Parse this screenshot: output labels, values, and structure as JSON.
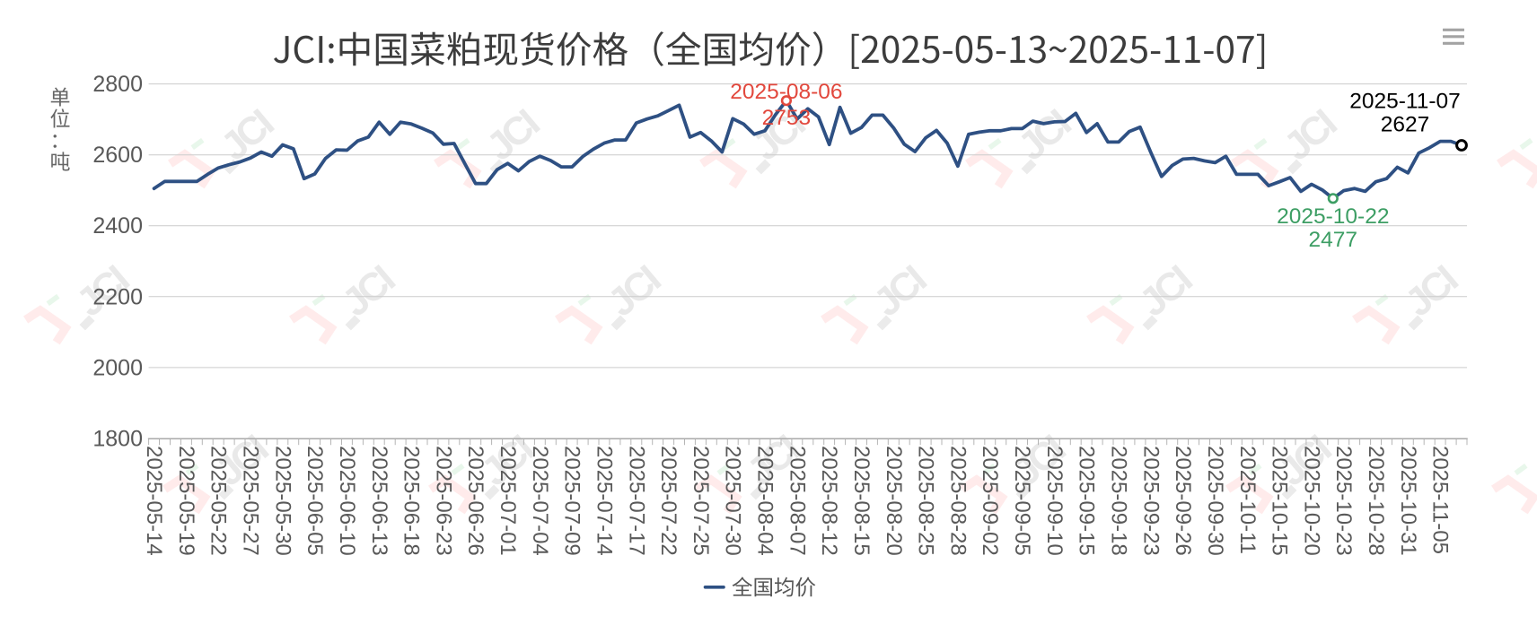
{
  "chart_data": {
    "type": "line",
    "title": "JCI:中国菜粕现货价格（全国均价）[2025-05-13~2025-11-07]",
    "y_axis_name": "单位：吨",
    "series": [
      {
        "name": "全国均价",
        "x": [
          "2025-05-14",
          "2025-05-15",
          "2025-05-16",
          "2025-05-19",
          "2025-05-20",
          "2025-05-21",
          "2025-05-22",
          "2025-05-23",
          "2025-05-26",
          "2025-05-27",
          "2025-05-28",
          "2025-05-29",
          "2025-05-30",
          "2025-06-03",
          "2025-06-04",
          "2025-06-05",
          "2025-06-06",
          "2025-06-09",
          "2025-06-10",
          "2025-06-11",
          "2025-06-12",
          "2025-06-13",
          "2025-06-16",
          "2025-06-17",
          "2025-06-18",
          "2025-06-19",
          "2025-06-20",
          "2025-06-23",
          "2025-06-24",
          "2025-06-25",
          "2025-06-26",
          "2025-06-27",
          "2025-06-30",
          "2025-07-01",
          "2025-07-02",
          "2025-07-03",
          "2025-07-04",
          "2025-07-07",
          "2025-07-08",
          "2025-07-09",
          "2025-07-10",
          "2025-07-11",
          "2025-07-14",
          "2025-07-15",
          "2025-07-16",
          "2025-07-17",
          "2025-07-18",
          "2025-07-21",
          "2025-07-22",
          "2025-07-23",
          "2025-07-24",
          "2025-07-25",
          "2025-07-28",
          "2025-07-29",
          "2025-07-30",
          "2025-07-31",
          "2025-08-01",
          "2025-08-04",
          "2025-08-05",
          "2025-08-06",
          "2025-08-07",
          "2025-08-08",
          "2025-08-11",
          "2025-08-12",
          "2025-08-13",
          "2025-08-14",
          "2025-08-15",
          "2025-08-18",
          "2025-08-19",
          "2025-08-20",
          "2025-08-21",
          "2025-08-22",
          "2025-08-25",
          "2025-08-26",
          "2025-08-27",
          "2025-08-28",
          "2025-08-29",
          "2025-09-01",
          "2025-09-02",
          "2025-09-03",
          "2025-09-04",
          "2025-09-05",
          "2025-09-08",
          "2025-09-09",
          "2025-09-10",
          "2025-09-11",
          "2025-09-12",
          "2025-09-15",
          "2025-09-16",
          "2025-09-17",
          "2025-09-18",
          "2025-09-19",
          "2025-09-22",
          "2025-09-23",
          "2025-09-24",
          "2025-09-25",
          "2025-09-26",
          "2025-09-28",
          "2025-09-29",
          "2025-09-30",
          "2025-10-09",
          "2025-10-10",
          "2025-10-11",
          "2025-10-13",
          "2025-10-14",
          "2025-10-15",
          "2025-10-16",
          "2025-10-17",
          "2025-10-20",
          "2025-10-21",
          "2025-10-22",
          "2025-10-23",
          "2025-10-24",
          "2025-10-27",
          "2025-10-28",
          "2025-10-29",
          "2025-10-30",
          "2025-10-31",
          "2025-11-03",
          "2025-11-04",
          "2025-11-05",
          "2025-11-06",
          "2025-11-07"
        ],
        "values": [
          2505,
          2525,
          2525,
          2525,
          2525,
          2545,
          2563,
          2572,
          2580,
          2591,
          2608,
          2596,
          2628,
          2617,
          2533,
          2546,
          2590,
          2614,
          2613,
          2639,
          2650,
          2692,
          2658,
          2692,
          2687,
          2675,
          2662,
          2630,
          2632,
          2575,
          2519,
          2519,
          2558,
          2576,
          2555,
          2581,
          2596,
          2584,
          2566,
          2566,
          2595,
          2616,
          2633,
          2642,
          2642,
          2690,
          2701,
          2710,
          2725,
          2740,
          2650,
          2663,
          2639,
          2608,
          2702,
          2687,
          2658,
          2668,
          2714,
          2753,
          2701,
          2730,
          2707,
          2629,
          2734,
          2661,
          2677,
          2712,
          2712,
          2676,
          2630,
          2609,
          2648,
          2669,
          2633,
          2568,
          2658,
          2664,
          2668,
          2668,
          2674,
          2674,
          2695,
          2688,
          2693,
          2694,
          2717,
          2663,
          2688,
          2636,
          2636,
          2666,
          2678,
          2607,
          2539,
          2570,
          2588,
          2590,
          2583,
          2578,
          2596,
          2545,
          2545,
          2545,
          2513,
          2524,
          2536,
          2497,
          2517,
          2501,
          2477,
          2499,
          2505,
          2497,
          2524,
          2533,
          2565,
          2549,
          2605,
          2620,
          2638,
          2638,
          2627
        ]
      }
    ],
    "x_tick_labels": [
      "2025-05-14",
      "2025-05-19",
      "2025-05-22",
      "2025-05-27",
      "2025-05-30",
      "2025-06-05",
      "2025-06-10",
      "2025-06-13",
      "2025-06-18",
      "2025-06-23",
      "2025-06-26",
      "2025-07-01",
      "2025-07-04",
      "2025-07-09",
      "2025-07-14",
      "2025-07-17",
      "2025-07-22",
      "2025-07-25",
      "2025-07-30",
      "2025-08-04",
      "2025-08-07",
      "2025-08-12",
      "2025-08-15",
      "2025-08-20",
      "2025-08-25",
      "2025-08-28",
      "2025-09-02",
      "2025-09-05",
      "2025-09-10",
      "2025-09-15",
      "2025-09-18",
      "2025-09-23",
      "2025-09-26",
      "2025-09-30",
      "2025-10-11",
      "2025-10-15",
      "2025-10-20",
      "2025-10-23",
      "2025-10-28",
      "2025-10-31",
      "2025-11-05"
    ],
    "x_label_every": 3,
    "yticks": [
      1800,
      2000,
      2200,
      2400,
      2600,
      2800
    ],
    "ylim": [
      1800,
      2800
    ],
    "grid": true,
    "legend_position": "bottom",
    "legend": [
      {
        "label": "全国均价",
        "color": "#2e5083"
      }
    ],
    "markers": {
      "max": {
        "date": "2025-08-06",
        "value": 2753,
        "color": "#e2483d"
      },
      "min": {
        "date": "2025-10-22",
        "value": 2477,
        "color": "#3d9e64"
      },
      "last": {
        "date": "2025-11-07",
        "value": 2627,
        "color": "#000000"
      }
    },
    "colors": {
      "line": "#2e5083",
      "grid_line": "#cccccc",
      "axis_line": "#aaaaaa",
      "tick_label": "#595959",
      "title_text": "#3c3c3c",
      "legend_text": "#565656",
      "menu_icon": "#a3a3a3"
    },
    "watermark_text": "JCI"
  },
  "toolbar": {
    "menu_tooltip": "menu"
  }
}
